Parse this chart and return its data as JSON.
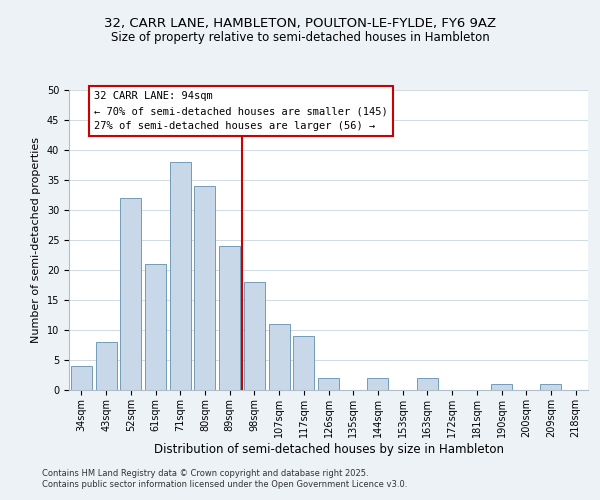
{
  "title": "32, CARR LANE, HAMBLETON, POULTON-LE-FYLDE, FY6 9AZ",
  "subtitle": "Size of property relative to semi-detached houses in Hambleton",
  "xlabel": "Distribution of semi-detached houses by size in Hambleton",
  "ylabel": "Number of semi-detached properties",
  "bins": [
    "34sqm",
    "43sqm",
    "52sqm",
    "61sqm",
    "71sqm",
    "80sqm",
    "89sqm",
    "98sqm",
    "107sqm",
    "117sqm",
    "126sqm",
    "135sqm",
    "144sqm",
    "153sqm",
    "163sqm",
    "172sqm",
    "181sqm",
    "190sqm",
    "200sqm",
    "209sqm",
    "218sqm"
  ],
  "counts": [
    4,
    8,
    32,
    21,
    38,
    34,
    24,
    18,
    11,
    9,
    2,
    0,
    2,
    0,
    2,
    0,
    0,
    1,
    0,
    1,
    0
  ],
  "bar_color": "#c8d8e8",
  "bar_edgecolor": "#6090b0",
  "vline_color": "#cc0000",
  "annotation_title": "32 CARR LANE: 94sqm",
  "annotation_line1": "← 70% of semi-detached houses are smaller (145)",
  "annotation_line2": "27% of semi-detached houses are larger (56) →",
  "annotation_box_color": "#ffffff",
  "annotation_box_edgecolor": "#cc0000",
  "ylim": [
    0,
    50
  ],
  "yticks": [
    0,
    5,
    10,
    15,
    20,
    25,
    30,
    35,
    40,
    45,
    50
  ],
  "background_color": "#edf2f7",
  "plot_bg_color": "#ffffff",
  "grid_color": "#d0dae4",
  "footer1": "Contains HM Land Registry data © Crown copyright and database right 2025.",
  "footer2": "Contains public sector information licensed under the Open Government Licence v3.0.",
  "title_fontsize": 9.5,
  "subtitle_fontsize": 8.5,
  "xlabel_fontsize": 8.5,
  "ylabel_fontsize": 8,
  "tick_fontsize": 7,
  "annotation_fontsize": 7.5,
  "footer_fontsize": 6
}
